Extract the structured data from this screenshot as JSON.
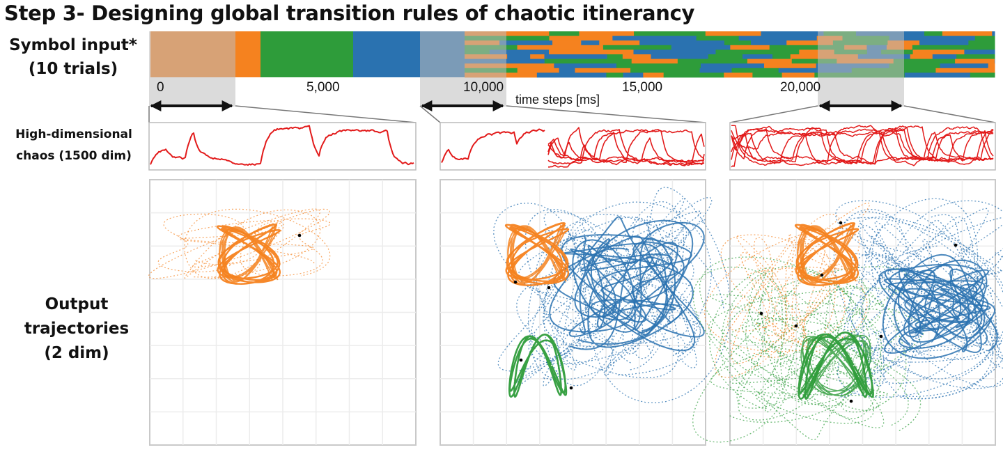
{
  "title": "Step 3- Designing global transition rules of chaotic itinerancy",
  "rows": {
    "symbol_input": [
      "Symbol input*",
      "(10 trials)"
    ],
    "chaos": [
      "High-dimensional",
      "chaos (1500 dim)"
    ],
    "output": [
      "Output",
      "trajectories",
      "(2 dim)"
    ]
  },
  "axis": {
    "label": "time steps [ms]",
    "ticks": [
      "0",
      "5,000",
      "10,000",
      "15,000",
      "20,000"
    ]
  },
  "colors": {
    "orange": "#f5821f",
    "green": "#2e9c3a",
    "blue": "#2a72b0",
    "red": "#e21a1a",
    "highlight": "#c8c8c8"
  },
  "chart_data": {
    "type": "diagram",
    "symbols": [
      "orange",
      "green",
      "blue"
    ],
    "windows_ms": [
      [
        0,
        2500
      ],
      [
        8000,
        10500
      ],
      [
        20000,
        22500
      ]
    ]
  }
}
